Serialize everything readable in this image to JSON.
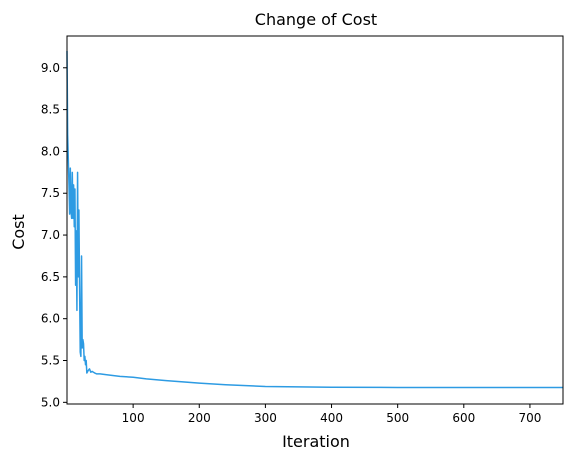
{
  "chart_data": {
    "type": "line",
    "title": "Change of Cost",
    "xlabel": "Iteration",
    "ylabel": "Cost",
    "xlim": [
      0,
      750
    ],
    "ylim": [
      4.98,
      9.38
    ],
    "xticks": [
      100,
      200,
      300,
      400,
      500,
      600,
      700
    ],
    "yticks": [
      5.0,
      5.5,
      6.0,
      6.5,
      7.0,
      7.5,
      8.0,
      8.5,
      9.0
    ],
    "grid": false,
    "series": [
      {
        "color": "#2d9be3",
        "x": [
          0,
          1,
          2,
          3,
          4,
          5,
          6,
          7,
          8,
          9,
          10,
          11,
          12,
          13,
          14,
          15,
          16,
          17,
          18,
          19,
          20,
          21,
          22,
          23,
          24,
          25,
          26,
          27,
          28,
          29,
          30,
          32,
          34,
          36,
          38,
          40,
          42,
          45,
          50,
          60,
          80,
          100,
          120,
          150,
          200,
          240,
          300,
          350,
          400,
          500,
          600,
          700,
          750
        ],
        "y": [
          9.2,
          8.2,
          7.9,
          7.6,
          7.25,
          7.8,
          7.3,
          7.2,
          7.75,
          7.2,
          7.6,
          7.1,
          7.55,
          6.4,
          7.05,
          6.1,
          7.75,
          6.5,
          7.3,
          6.4,
          5.6,
          5.55,
          6.75,
          5.65,
          5.75,
          5.7,
          5.5,
          5.55,
          5.45,
          5.5,
          5.35,
          5.38,
          5.4,
          5.36,
          5.37,
          5.36,
          5.35,
          5.34,
          5.34,
          5.33,
          5.31,
          5.3,
          5.28,
          5.26,
          5.23,
          5.21,
          5.19,
          5.185,
          5.18,
          5.178,
          5.177,
          5.177,
          5.177
        ]
      }
    ]
  }
}
